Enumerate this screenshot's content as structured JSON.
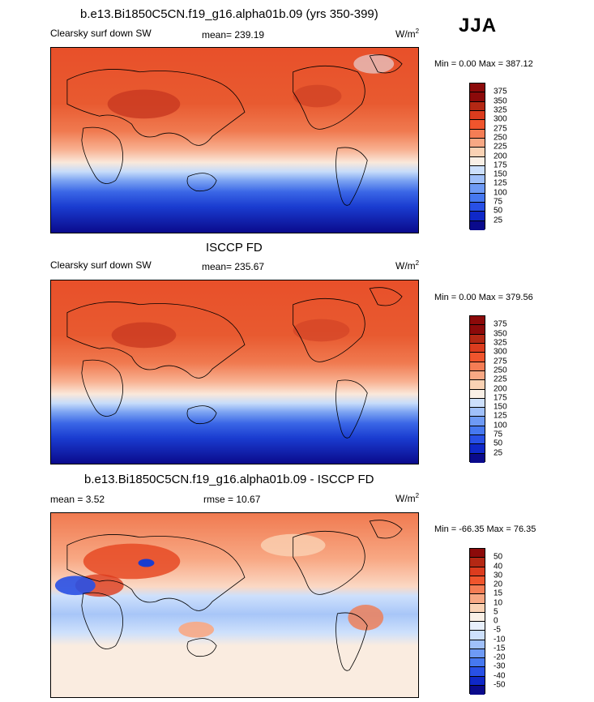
{
  "season": "JJA",
  "colors": {
    "abs_scale": [
      "#0a0a8c",
      "#0f28c8",
      "#2850e6",
      "#4678f0",
      "#6e9af5",
      "#a0c0fa",
      "#cde0fc",
      "#faf0e6",
      "#fad2b4",
      "#f8a884",
      "#f57d55",
      "#f0552d",
      "#dc3c1e",
      "#b42814",
      "#8c0a0a"
    ],
    "diff_scale": [
      "#0a0a8c",
      "#0f28c8",
      "#2850e6",
      "#4678f0",
      "#6e9af5",
      "#a0c0fa",
      "#cde0fc",
      "#e8f0fc",
      "#faf0e6",
      "#fad2b4",
      "#f8a884",
      "#f57d55",
      "#f0552d",
      "#dc3c1e",
      "#b42814",
      "#8c0a0a"
    ]
  },
  "panel1": {
    "title": "b.e13.Bi1850C5CN.f19_g16.alpha01b.09 (yrs 350-399)",
    "left": "Clearsky surf down SW",
    "center": "mean= 239.19",
    "units_base": "W/m",
    "units_exp": "2",
    "minmax": "Min =   0.00 Max = 387.12",
    "levels": [
      "375",
      "350",
      "325",
      "300",
      "275",
      "250",
      "225",
      "200",
      "175",
      "150",
      "125",
      "100",
      "75",
      "50",
      "25"
    ]
  },
  "panel2": {
    "title": "ISCCP FD",
    "left": "Clearsky surf down SW",
    "center": "mean= 235.67",
    "units_base": "W/m",
    "units_exp": "2",
    "minmax": "Min =   0.00 Max = 379.56",
    "levels": [
      "375",
      "350",
      "325",
      "300",
      "275",
      "250",
      "225",
      "200",
      "175",
      "150",
      "125",
      "100",
      "75",
      "50",
      "25"
    ]
  },
  "panel3": {
    "title": "b.e13.Bi1850C5CN.f19_g16.alpha01b.09 - ISCCP FD",
    "left": "mean =   3.52",
    "center": "rmse =  10.67",
    "units_base": "W/m",
    "units_exp": "2",
    "minmax": "Min = -66.35 Max =  76.35",
    "levels": [
      "50",
      "40",
      "30",
      "20",
      "15",
      "10",
      "5",
      "0",
      "-5",
      "-10",
      "-15",
      "-20",
      "-30",
      "-40",
      "-50"
    ]
  },
  "chart_data": [
    {
      "type": "heatmap",
      "title": "b.e13.Bi1850C5CN.f19_g16.alpha01b.09 (yrs 350-399)",
      "variable": "Clearsky surf down SW",
      "season": "JJA",
      "units": "W/m2",
      "mean": 239.19,
      "min": 0.0,
      "max": 387.12,
      "contour_levels": [
        25,
        50,
        75,
        100,
        125,
        150,
        175,
        200,
        225,
        250,
        275,
        300,
        325,
        350,
        375
      ],
      "lat_profile_approx": {
        "lat": [
          80,
          60,
          40,
          20,
          0,
          -20,
          -40,
          -60,
          -80
        ],
        "value": [
          340,
          330,
          325,
          310,
          285,
          235,
          150,
          60,
          10
        ]
      }
    },
    {
      "type": "heatmap",
      "title": "ISCCP FD",
      "variable": "Clearsky surf down SW",
      "season": "JJA",
      "units": "W/m2",
      "mean": 235.67,
      "min": 0.0,
      "max": 379.56,
      "contour_levels": [
        25,
        50,
        75,
        100,
        125,
        150,
        175,
        200,
        225,
        250,
        275,
        300,
        325,
        350,
        375
      ],
      "lat_profile_approx": {
        "lat": [
          80,
          60,
          40,
          20,
          0,
          -20,
          -40,
          -60,
          -80
        ],
        "value": [
          335,
          325,
          320,
          305,
          280,
          230,
          145,
          55,
          10
        ]
      }
    },
    {
      "type": "heatmap",
      "title": "b.e13.Bi1850C5CN.f19_g16.alpha01b.09 - ISCCP FD",
      "season": "JJA",
      "units": "W/m2",
      "mean": 3.52,
      "rmse": 10.67,
      "min": -66.35,
      "max": 76.35,
      "contour_levels": [
        -50,
        -40,
        -30,
        -20,
        -15,
        -10,
        -5,
        0,
        5,
        10,
        15,
        20,
        30,
        40,
        50
      ]
    }
  ]
}
